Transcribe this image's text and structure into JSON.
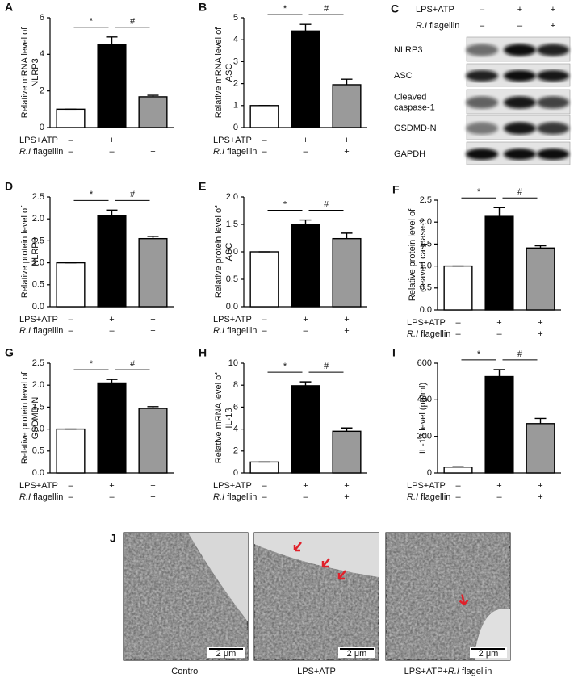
{
  "chart_data": [
    {
      "type": "bar",
      "panel": "A",
      "ylabel": [
        "Relative mRNA level of",
        "NLRP3"
      ],
      "categories": [
        null,
        null,
        null
      ],
      "values": [
        1,
        4.55,
        1.68
      ],
      "errors": [
        0,
        0.4,
        0.08
      ],
      "colors": [
        "#ffffff",
        "#000000",
        "#9a9a9a"
      ],
      "ylim": [
        0,
        6
      ],
      "yticks": [
        0,
        2,
        4,
        6
      ],
      "sig_labels": [
        "*",
        "#"
      ],
      "rows": [
        {
          "parts": [
            {
              "t": "LPS+ATP"
            }
          ],
          "signs": [
            "–",
            "+",
            "+"
          ]
        },
        {
          "parts": [
            {
              "t": "R.I",
              "italic": true
            },
            {
              "t": " flagellin"
            }
          ],
          "signs": [
            "–",
            "–",
            "+"
          ]
        }
      ]
    },
    {
      "type": "bar",
      "panel": "B",
      "ylabel": [
        "Relative mRNA level of",
        "ASC"
      ],
      "categories": [
        null,
        null,
        null
      ],
      "values": [
        1,
        4.4,
        1.95
      ],
      "errors": [
        0,
        0.3,
        0.25
      ],
      "colors": [
        "#ffffff",
        "#000000",
        "#9a9a9a"
      ],
      "ylim": [
        0,
        5
      ],
      "yticks": [
        0,
        1,
        2,
        3,
        4,
        5
      ],
      "sig_labels": [
        "*",
        "#"
      ],
      "rows": [
        {
          "parts": [
            {
              "t": "LPS+ATP"
            }
          ],
          "signs": [
            "–",
            "+",
            "+"
          ]
        },
        {
          "parts": [
            {
              "t": "R.I",
              "italic": true
            },
            {
              "t": " flagellin"
            }
          ],
          "signs": [
            "–",
            "–",
            "+"
          ]
        }
      ]
    },
    {
      "type": "bar",
      "panel": "D",
      "ylabel": [
        "Relative protein level of",
        "NLRP3"
      ],
      "categories": [
        null,
        null,
        null
      ],
      "values": [
        1,
        2.08,
        1.55
      ],
      "errors": [
        0,
        0.12,
        0.05
      ],
      "colors": [
        "#ffffff",
        "#000000",
        "#9a9a9a"
      ],
      "ylim": [
        0,
        2.5
      ],
      "yticks": [
        {
          "value": 0,
          "label": "0.0"
        },
        0.5,
        {
          "value": 1,
          "label": "1.0"
        },
        1.5,
        {
          "value": 2,
          "label": "2.0"
        },
        2.5
      ],
      "sig_labels": [
        "*",
        "#"
      ],
      "rows": [
        {
          "parts": [
            {
              "t": "LPS+ATP"
            }
          ],
          "signs": [
            "–",
            "+",
            "+"
          ]
        },
        {
          "parts": [
            {
              "t": "R.I",
              "italic": true
            },
            {
              "t": " flagellin"
            }
          ],
          "signs": [
            "–",
            "–",
            "+"
          ]
        }
      ]
    },
    {
      "type": "bar",
      "panel": "E",
      "ylabel": [
        "Relative protein level of",
        "ASC"
      ],
      "categories": [
        null,
        null,
        null
      ],
      "values": [
        1,
        1.5,
        1.24
      ],
      "errors": [
        0,
        0.08,
        0.1
      ],
      "colors": [
        "#ffffff",
        "#000000",
        "#9a9a9a"
      ],
      "ylim": [
        0,
        2
      ],
      "yticks": [
        {
          "value": 0,
          "label": "0.0"
        },
        0.5,
        {
          "value": 1,
          "label": "1.0"
        },
        1.5,
        {
          "value": 2,
          "label": "2.0"
        }
      ],
      "sig_labels": [
        "*",
        "#"
      ],
      "rows": [
        {
          "parts": [
            {
              "t": "LPS+ATP"
            }
          ],
          "signs": [
            "–",
            "+",
            "+"
          ]
        },
        {
          "parts": [
            {
              "t": "R.I",
              "italic": true
            },
            {
              "t": " flagellin"
            }
          ],
          "signs": [
            "–",
            "–",
            "+"
          ]
        }
      ]
    },
    {
      "type": "bar",
      "panel": "F",
      "ylabel": [
        "Relative protein level of",
        "cleaved caspase-1"
      ],
      "categories": [
        null,
        null,
        null
      ],
      "values": [
        1,
        2.13,
        1.41
      ],
      "errors": [
        0,
        0.2,
        0.05
      ],
      "colors": [
        "#ffffff",
        "#000000",
        "#9a9a9a"
      ],
      "ylim": [
        0,
        2.5
      ],
      "yticks": [
        {
          "value": 0,
          "label": "0.0"
        },
        0.5,
        {
          "value": 1,
          "label": "1.0"
        },
        1.5,
        {
          "value": 2,
          "label": "2.0"
        },
        2.5
      ],
      "sig_labels": [
        "*",
        "#"
      ],
      "rows": [
        {
          "parts": [
            {
              "t": "LPS+ATP"
            }
          ],
          "signs": [
            "–",
            "+",
            "+"
          ]
        },
        {
          "parts": [
            {
              "t": "R.I",
              "italic": true
            },
            {
              "t": " flagellin"
            }
          ],
          "signs": [
            "–",
            "–",
            "+"
          ]
        }
      ]
    },
    {
      "type": "bar",
      "panel": "G",
      "ylabel": [
        "Relative protein level of",
        "GSDMD-N"
      ],
      "categories": [
        null,
        null,
        null
      ],
      "values": [
        1,
        2.05,
        1.47
      ],
      "errors": [
        0,
        0.08,
        0.04
      ],
      "colors": [
        "#ffffff",
        "#000000",
        "#9a9a9a"
      ],
      "ylim": [
        0,
        2.5
      ],
      "yticks": [
        {
          "value": 0,
          "label": "0.0"
        },
        0.5,
        {
          "value": 1,
          "label": "1.0"
        },
        1.5,
        {
          "value": 2,
          "label": "2.0"
        },
        2.5
      ],
      "sig_labels": [
        "*",
        "#"
      ],
      "rows": [
        {
          "parts": [
            {
              "t": "LPS+ATP"
            }
          ],
          "signs": [
            "–",
            "+",
            "+"
          ]
        },
        {
          "parts": [
            {
              "t": "R.I",
              "italic": true
            },
            {
              "t": " flagellin"
            }
          ],
          "signs": [
            "–",
            "–",
            "+"
          ]
        }
      ]
    },
    {
      "type": "bar",
      "panel": "H",
      "ylabel": [
        "Relative mRNA level of",
        "IL-1β"
      ],
      "categories": [
        null,
        null,
        null
      ],
      "values": [
        1,
        7.95,
        3.8
      ],
      "errors": [
        0,
        0.35,
        0.3
      ],
      "colors": [
        "#ffffff",
        "#000000",
        "#9a9a9a"
      ],
      "ylim": [
        0,
        10
      ],
      "yticks": [
        0,
        2,
        4,
        6,
        8,
        10
      ],
      "sig_labels": [
        "*",
        "#"
      ],
      "rows": [
        {
          "parts": [
            {
              "t": "LPS+ATP"
            }
          ],
          "signs": [
            "–",
            "+",
            "+"
          ]
        },
        {
          "parts": [
            {
              "t": "R.I",
              "italic": true
            },
            {
              "t": " flagellin"
            }
          ],
          "signs": [
            "–",
            "–",
            "+"
          ]
        }
      ]
    },
    {
      "type": "bar",
      "panel": "I",
      "ylabel": [
        "IL-1β level (pg/ml)"
      ],
      "categories": [
        null,
        null,
        null
      ],
      "values": [
        32,
        527,
        270
      ],
      "errors": [
        2,
        38,
        28
      ],
      "colors": [
        "#ffffff",
        "#000000",
        "#9a9a9a"
      ],
      "ylim": [
        0,
        600
      ],
      "yticks": [
        0,
        200,
        400,
        600
      ],
      "sig_labels": [
        "*",
        "#"
      ],
      "rows": [
        {
          "parts": [
            {
              "t": "LPS+ATP"
            }
          ],
          "signs": [
            "–",
            "+",
            "+"
          ]
        },
        {
          "parts": [
            {
              "t": "R.I",
              "italic": true
            },
            {
              "t": " flagellin"
            }
          ],
          "signs": [
            "–",
            "–",
            "+"
          ]
        }
      ]
    }
  ],
  "blot": {
    "panel": "C",
    "rows": [
      {
        "parts": [
          {
            "t": "LPS+ATP"
          }
        ],
        "signs": [
          "–",
          "+",
          "+"
        ]
      },
      {
        "parts": [
          {
            "t": "R.I",
            "italic": true
          },
          {
            "t": " flagellin"
          }
        ],
        "signs": [
          "–",
          "–",
          "+"
        ]
      }
    ],
    "bands": [
      [
        "NLRP3"
      ],
      [
        "ASC"
      ],
      [
        "Cleaved",
        "caspase-1"
      ],
      [
        "GSDMD-N"
      ],
      [
        "GAPDH"
      ]
    ]
  },
  "micrographs": {
    "panel": "J",
    "scale_label": "2 μm",
    "captions": [
      {
        "parts": [
          {
            "t": "Control"
          }
        ]
      },
      {
        "parts": [
          {
            "t": "LPS+ATP"
          }
        ]
      },
      {
        "parts": [
          {
            "t": "LPS+ATP+"
          },
          {
            "t": "R.I",
            "italic": true
          },
          {
            "t": " flagellin"
          }
        ]
      }
    ]
  }
}
